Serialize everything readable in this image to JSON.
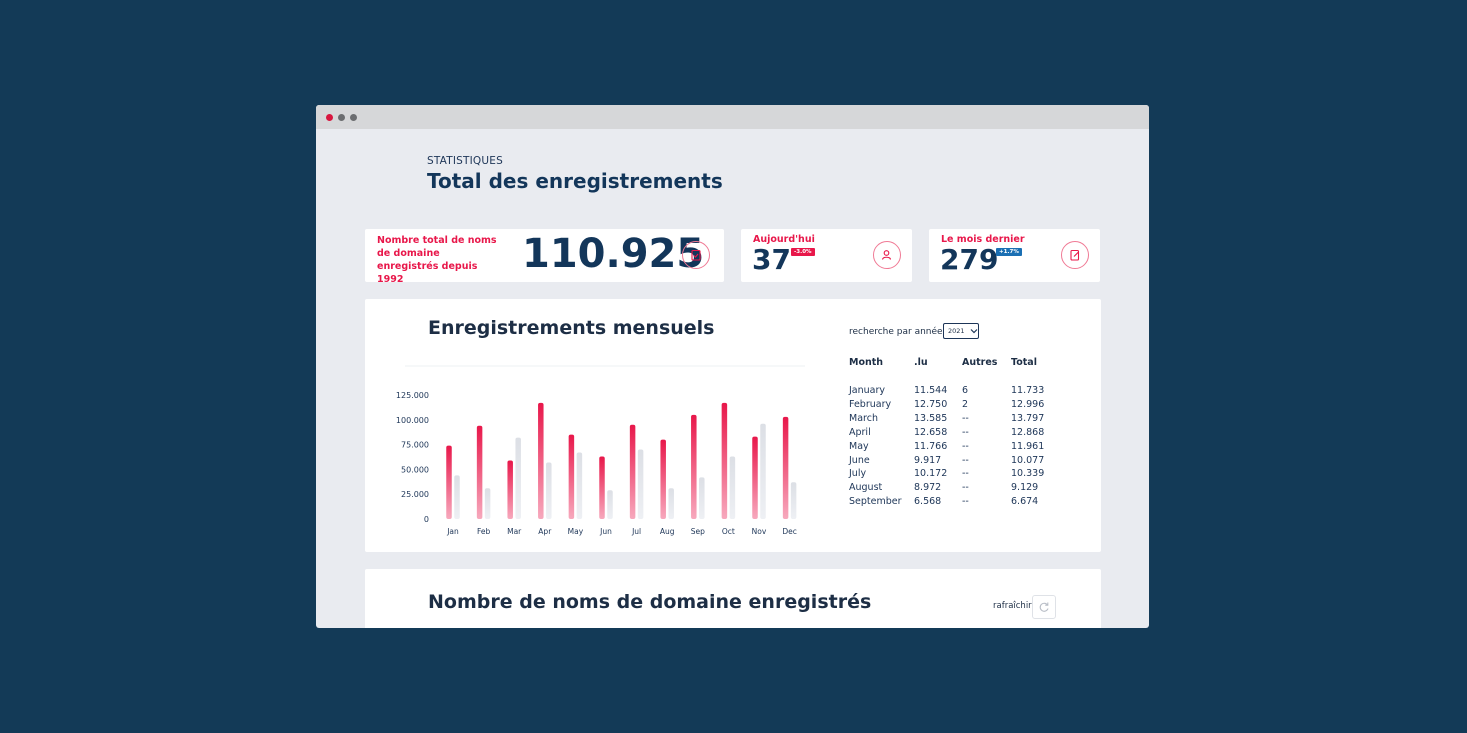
{
  "window": {
    "dots": [
      "#d8163f",
      "#6b6d70",
      "#6b6d70"
    ]
  },
  "header": {
    "eyebrow": "STATISTIQUES",
    "title": "Total des enregistrements"
  },
  "kpis": {
    "total": {
      "label": "Nombre total de noms de domaine enregistrés depuis 1992",
      "value": "110.925",
      "icon": "clipboard-check-icon"
    },
    "today": {
      "label": "Aujourd'hui",
      "value": "37",
      "badge": "-3.0%",
      "badge_color": "#e8174a",
      "icon": "user-search-icon"
    },
    "last_month": {
      "label": "Le mois dernier",
      "value": "279",
      "badge": "+1.7%",
      "badge_color": "#1b6fb3",
      "icon": "edit-document-icon"
    }
  },
  "monthly": {
    "title": "Enregistrements mensuels",
    "search_label": "recherche par année",
    "year_select": "2021",
    "table": {
      "headers": [
        "Month",
        ".lu",
        "Autres",
        "Total"
      ],
      "rows": [
        [
          "January",
          "11.544",
          "6",
          "11.733"
        ],
        [
          "February",
          "12.750",
          "2",
          "12.996"
        ],
        [
          "March",
          "13.585",
          "--",
          "13.797"
        ],
        [
          "April",
          "12.658",
          "--",
          "12.868"
        ],
        [
          "May",
          "11.766",
          "--",
          "11.961"
        ],
        [
          "June",
          "9.917",
          "--",
          "10.077"
        ],
        [
          "July",
          "10.172",
          "--",
          "10.339"
        ],
        [
          "August",
          "8.972",
          "--",
          "9.129"
        ],
        [
          "September",
          "6.568",
          "--",
          "6.674"
        ]
      ]
    }
  },
  "chart_data": {
    "type": "bar",
    "categories": [
      "Jan",
      "Feb",
      "Mar",
      "Apr",
      "May",
      "Jun",
      "Jul",
      "Aug",
      "Sep",
      "Oct",
      "Nov",
      "Dec"
    ],
    "series": [
      {
        "values": [
          74000,
          94000,
          59000,
          117000,
          85000,
          63000,
          95000,
          80000,
          105000,
          117000,
          83000,
          103000
        ],
        "color": "#e8174a"
      },
      {
        "values": [
          44000,
          31000,
          82000,
          57000,
          67000,
          29000,
          70000,
          31000,
          42000,
          63000,
          96000,
          37000
        ],
        "color": "#dcdfe5"
      }
    ],
    "yticks": [
      "0",
      "25.000",
      "50.000",
      "75.000",
      "100.000",
      "125.000"
    ],
    "ylim": [
      0,
      125000
    ]
  },
  "domains": {
    "title": "Nombre de noms de domaine enregistrés",
    "refresh_label": "rafraîchir",
    "refresh_icon": "refresh-icon"
  }
}
